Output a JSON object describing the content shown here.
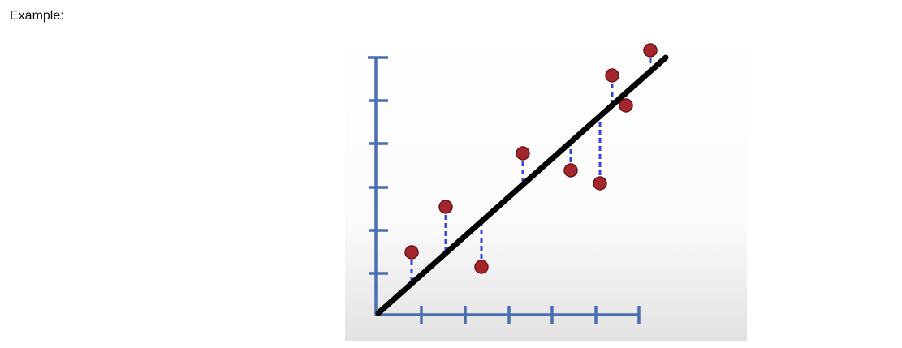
{
  "label": "Example:"
}
